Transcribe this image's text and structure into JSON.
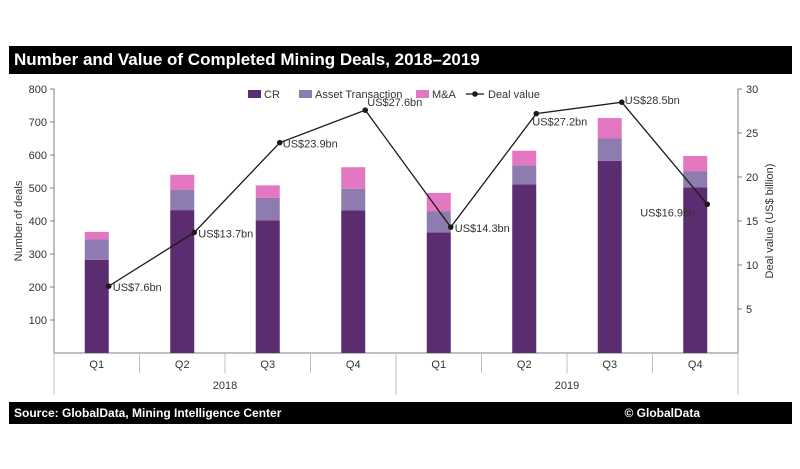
{
  "title": "Number and Value of Completed Mining Deals, 2018–2019",
  "source": "Source: GlobalData, Mining Intelligence Center",
  "brand": "© GlobalData",
  "colors": {
    "cr": "#5b2c6f",
    "asset": "#8e7cb0",
    "ma": "#e377c2",
    "line": "#1a1a1a",
    "bar_title": "#000000"
  },
  "chart_data": {
    "type": "bar",
    "categories": [
      "Q1",
      "Q2",
      "Q3",
      "Q4",
      "Q1",
      "Q2",
      "Q3",
      "Q4"
    ],
    "groups": [
      {
        "label": "2018",
        "quarters": 4
      },
      {
        "label": "2019",
        "quarters": 4
      }
    ],
    "series": [
      {
        "name": "CR",
        "kind": "stacked-bar",
        "values": [
          282,
          433,
          402,
          432,
          365,
          511,
          582,
          502
        ]
      },
      {
        "name": "Asset Transaction",
        "kind": "stacked-bar",
        "values": [
          63,
          62,
          68,
          66,
          65,
          57,
          68,
          48
        ]
      },
      {
        "name": "M&A",
        "kind": "stacked-bar",
        "values": [
          22,
          45,
          38,
          65,
          55,
          45,
          62,
          47
        ]
      },
      {
        "name": "Deal value",
        "kind": "line",
        "axis": "right",
        "values": [
          7.6,
          13.7,
          23.9,
          27.6,
          14.3,
          27.2,
          28.5,
          16.9
        ]
      }
    ],
    "point_labels": [
      "US$7.6bn",
      "US$13.7bn",
      "US$23.9bn",
      "US$27.6bn",
      "US$14.3bn",
      "US$27.2bn",
      "US$28.5bn",
      "US$16.9bn"
    ],
    "ylabel": "Number of deals",
    "y2label": "Deal value (US$ billion)",
    "ylim": [
      0,
      800
    ],
    "y2lim": [
      0,
      30
    ],
    "yticks": [
      100,
      200,
      300,
      400,
      500,
      600,
      700,
      800
    ],
    "y2ticks": [
      5,
      10,
      15,
      20,
      25,
      30
    ],
    "grid": false,
    "legend_position": "top-center"
  }
}
